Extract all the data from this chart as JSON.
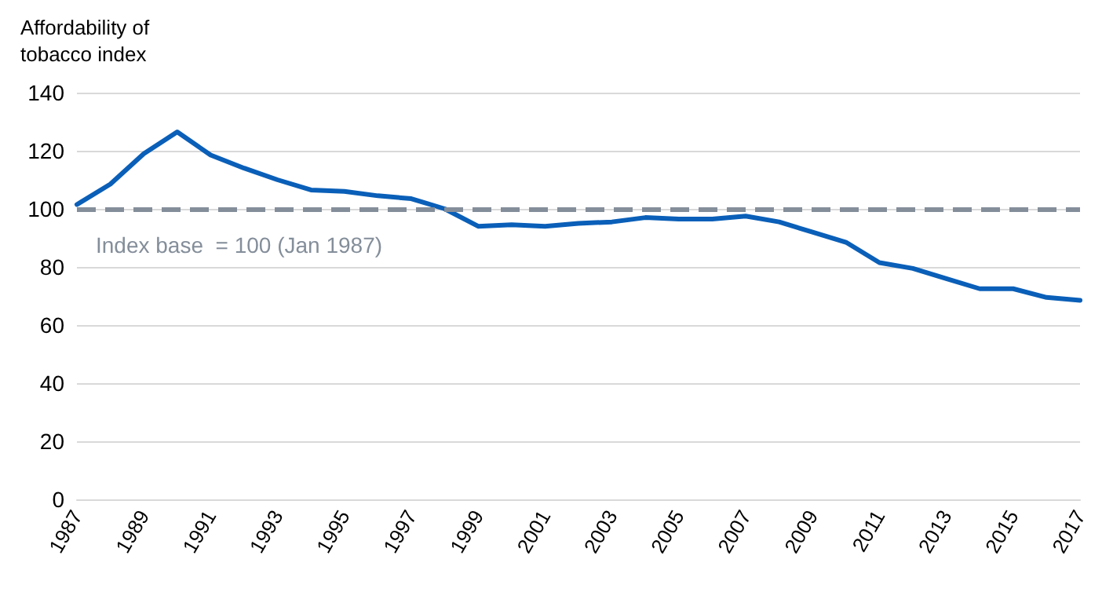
{
  "chart_data": {
    "type": "line",
    "ylabel": "Affordability of tobacco index",
    "x": [
      1987,
      1988,
      1989,
      1990,
      1991,
      1992,
      1993,
      1994,
      1995,
      1996,
      1997,
      1998,
      1999,
      2000,
      2001,
      2002,
      2003,
      2004,
      2005,
      2006,
      2007,
      2008,
      2009,
      2010,
      2011,
      2012,
      2013,
      2014,
      2015,
      2016,
      2017
    ],
    "series": [
      {
        "color": "#0a5fb8",
        "values": [
          101.5,
          108.5,
          119,
          126.5,
          118.5,
          114,
          110,
          106.5,
          106,
          104.5,
          103.5,
          100,
          94,
          94.5,
          94,
          95,
          95.5,
          97,
          96.5,
          96.5,
          97.5,
          95.5,
          92,
          88.5,
          81.5,
          79.5,
          76,
          72.5,
          72.5,
          69.5,
          68.5
        ]
      }
    ],
    "xlim": [
      1987,
      2017
    ],
    "xticks": [
      1987,
      1989,
      1991,
      1993,
      1995,
      1997,
      1999,
      2001,
      2003,
      2005,
      2007,
      2009,
      2011,
      2013,
      2015,
      2017
    ],
    "ylim": [
      0,
      140
    ],
    "yticks": [
      0,
      20,
      40,
      60,
      80,
      100,
      120,
      140
    ],
    "ref_lines": [
      {
        "axis": "y",
        "value": 100,
        "label": "Index base  = 100 (Jan 1987)",
        "color": "#848e9a",
        "line_style": "dashed"
      }
    ],
    "grid": "y",
    "marker": "none",
    "line_style": "solid"
  }
}
